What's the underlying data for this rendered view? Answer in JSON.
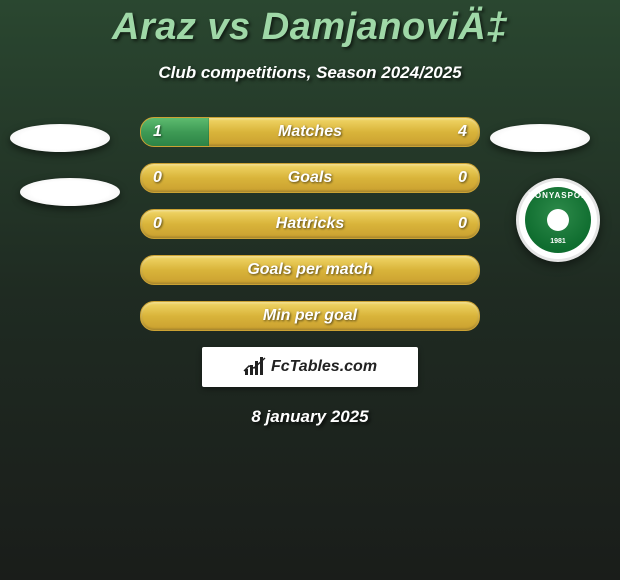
{
  "title": "Araz vs DamjanoviÄ‡",
  "subtitle": "Club competitions, Season 2024/2025",
  "date": "8 january 2025",
  "watermark": "FcTables.com",
  "club_right": {
    "name": "KONYASPOR",
    "year": "1981"
  },
  "colors": {
    "accent_green_light": "#9fd8a7",
    "bar_green_start": "#5dbb6f",
    "bar_green_end": "#2d8446",
    "bar_gold_start": "#f1d667",
    "bar_gold_end": "#caa030",
    "bg_start": "#2a4730",
    "bg_end": "#1a1d1a"
  },
  "bars": [
    {
      "label": "Matches",
      "left": "1",
      "right": "4",
      "fill_pct": 20
    },
    {
      "label": "Goals",
      "left": "0",
      "right": "0",
      "fill_pct": 0
    },
    {
      "label": "Hattricks",
      "left": "0",
      "right": "0",
      "fill_pct": 0
    },
    {
      "label": "Goals per match",
      "left": "",
      "right": "",
      "fill_pct": 0
    },
    {
      "label": "Min per goal",
      "left": "",
      "right": "",
      "fill_pct": 0
    }
  ]
}
